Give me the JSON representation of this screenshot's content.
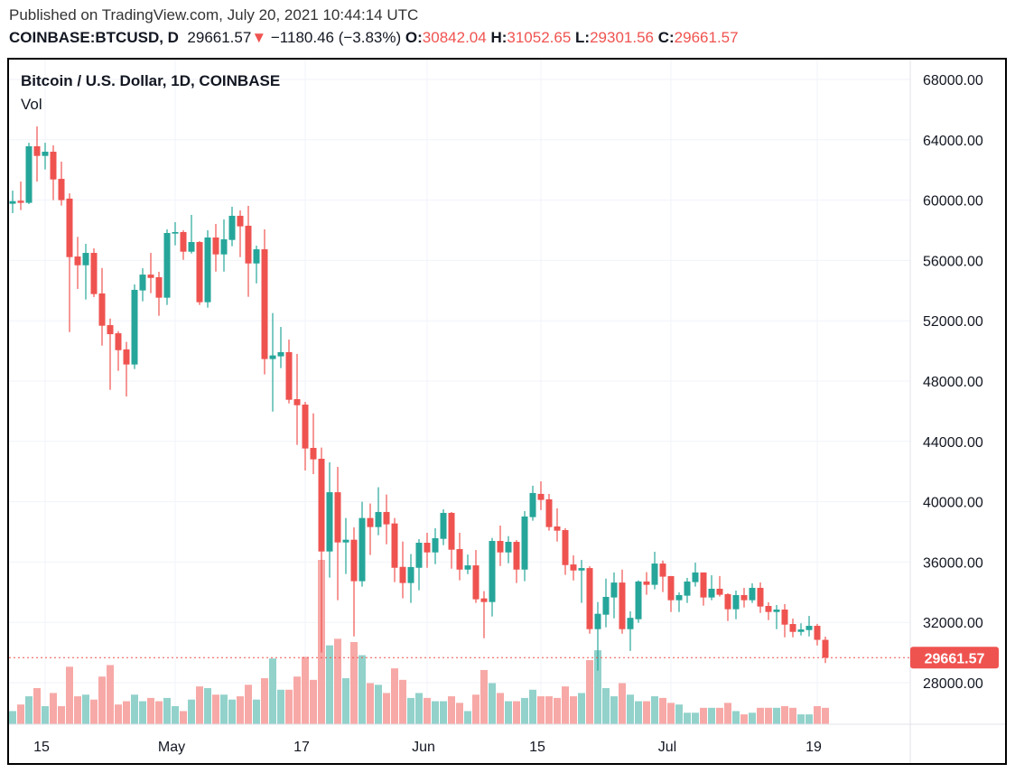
{
  "header": {
    "published": "Published on TradingView.com, July 20, 2021 10:44:14 UTC",
    "symbol": "COINBASE:BTCUSD, D",
    "last": "29661.57",
    "change": "−1180.46 (−3.83%)",
    "o_label": "O:",
    "o_value": "30842.04",
    "h_label": "H:",
    "h_value": "31052.65",
    "l_label": "L:",
    "l_value": "29301.56",
    "c_label": "C:",
    "c_value": "29661.57",
    "direction_icon": "triangle-down-icon"
  },
  "legend": {
    "title": "Bitcoin / U.S. Dollar, 1D, COINBASE",
    "volume": "Vol"
  },
  "colors": {
    "up": "#26a69a",
    "down": "#ef5350",
    "up_volume": "#92d2cb",
    "down_volume": "#f7a9a7",
    "grid": "#f0f3fa"
  },
  "chart_data": {
    "type": "candlestick",
    "title": "Bitcoin / U.S. Dollar, 1D, COINBASE",
    "ylim": [
      26000,
      69000
    ],
    "grid": true,
    "last_price_label": "29661.57",
    "y_ticks": [
      "28000.00",
      "32000.00",
      "36000.00",
      "40000.00",
      "44000.00",
      "48000.00",
      "52000.00",
      "56000.00",
      "60000.00",
      "64000.00",
      "68000.00"
    ],
    "x_ticks": [
      {
        "label": "15",
        "date": "2021-04-15"
      },
      {
        "label": "May",
        "date": "2021-05-01"
      },
      {
        "label": "17",
        "date": "2021-05-17"
      },
      {
        "label": "Jun",
        "date": "2021-06-01"
      },
      {
        "label": "15",
        "date": "2021-06-15"
      },
      {
        "label": "Jul",
        "date": "2021-07-01"
      },
      {
        "label": "19",
        "date": "2021-07-19"
      }
    ],
    "columns": [
      "date",
      "open",
      "high",
      "low",
      "close"
    ],
    "ohlc": [
      [
        "2021-04-11",
        59760,
        60630,
        59140,
        59930
      ],
      [
        "2021-04-12",
        59960,
        61230,
        59340,
        59820
      ],
      [
        "2021-04-13",
        59820,
        63800,
        59740,
        63570
      ],
      [
        "2021-04-14",
        63570,
        64890,
        61230,
        62930
      ],
      [
        "2021-04-15",
        62930,
        63800,
        62030,
        63210
      ],
      [
        "2021-04-16",
        63210,
        63630,
        60000,
        61370
      ],
      [
        "2021-04-17",
        61410,
        62550,
        59640,
        60000
      ],
      [
        "2021-04-18",
        60100,
        60450,
        51250,
        56220
      ],
      [
        "2021-04-19",
        56260,
        57560,
        54110,
        55680
      ],
      [
        "2021-04-20",
        55680,
        57100,
        53410,
        56500
      ],
      [
        "2021-04-21",
        56500,
        56800,
        53570,
        53770
      ],
      [
        "2021-04-22",
        53810,
        55500,
        50350,
        51670
      ],
      [
        "2021-04-23",
        51710,
        52150,
        47420,
        51110
      ],
      [
        "2021-04-24",
        51170,
        51310,
        48680,
        50050
      ],
      [
        "2021-04-25",
        50100,
        50600,
        46980,
        49100
      ],
      [
        "2021-04-26",
        49100,
        54410,
        48800,
        54050
      ],
      [
        "2021-04-27",
        54010,
        55480,
        53290,
        55060
      ],
      [
        "2021-04-28",
        55060,
        56500,
        53830,
        54840
      ],
      [
        "2021-04-29",
        54890,
        55250,
        52330,
        53530
      ],
      [
        "2021-04-30",
        53530,
        58060,
        53050,
        57820
      ],
      [
        "2021-05-01",
        57780,
        58540,
        57000,
        57880
      ],
      [
        "2021-05-02",
        57880,
        58000,
        56040,
        56580
      ],
      [
        "2021-05-03",
        56580,
        59020,
        56460,
        57220
      ],
      [
        "2021-05-04",
        57220,
        57280,
        53050,
        53230
      ],
      [
        "2021-05-05",
        53230,
        58000,
        52870,
        57520
      ],
      [
        "2021-05-06",
        57520,
        58420,
        55260,
        56400
      ],
      [
        "2021-05-07",
        56400,
        58720,
        55260,
        57400
      ],
      [
        "2021-05-08",
        57360,
        59560,
        56940,
        58960
      ],
      [
        "2021-05-09",
        58960,
        59320,
        56220,
        58260
      ],
      [
        "2021-05-10",
        58300,
        59620,
        53590,
        55800
      ],
      [
        "2021-05-11",
        55800,
        56980,
        54480,
        56740
      ],
      [
        "2021-05-12",
        56740,
        58060,
        48440,
        49460
      ],
      [
        "2021-05-13",
        49460,
        52510,
        45980,
        49700
      ],
      [
        "2021-05-14",
        49640,
        51590,
        48860,
        49920
      ],
      [
        "2021-05-15",
        49920,
        50750,
        46520,
        46760
      ],
      [
        "2021-05-16",
        46800,
        49800,
        43770,
        46400
      ],
      [
        "2021-05-17",
        46440,
        46620,
        42070,
        43530
      ],
      [
        "2021-05-18",
        43570,
        45860,
        41830,
        42810
      ],
      [
        "2021-05-19",
        42850,
        43590,
        30000,
        36700
      ],
      [
        "2021-05-20",
        36700,
        42610,
        34970,
        40630
      ],
      [
        "2021-05-21",
        40630,
        42310,
        33470,
        37300
      ],
      [
        "2021-05-22",
        37300,
        38920,
        35210,
        37480
      ],
      [
        "2021-05-23",
        37480,
        38300,
        31070,
        34730
      ],
      [
        "2021-05-24",
        34730,
        40000,
        34370,
        38920
      ],
      [
        "2021-05-25",
        38920,
        39880,
        36470,
        38320
      ],
      [
        "2021-05-26",
        38320,
        40960,
        37780,
        39320
      ],
      [
        "2021-05-27",
        39320,
        40480,
        37180,
        38500
      ],
      [
        "2021-05-28",
        38560,
        38920,
        34670,
        35620
      ],
      [
        "2021-05-29",
        35680,
        37360,
        33600,
        34610
      ],
      [
        "2021-05-30",
        34610,
        36530,
        33290,
        35670
      ],
      [
        "2021-05-31",
        35620,
        37520,
        34130,
        37280
      ],
      [
        "2021-06-01",
        37280,
        37940,
        35620,
        36640
      ],
      [
        "2021-06-02",
        36640,
        38240,
        35860,
        37580
      ],
      [
        "2021-06-03",
        37540,
        39500,
        37120,
        39260
      ],
      [
        "2021-06-04",
        39260,
        39320,
        35560,
        36820
      ],
      [
        "2021-06-05",
        36860,
        37940,
        34790,
        35500
      ],
      [
        "2021-06-06",
        35500,
        36500,
        35200,
        35780
      ],
      [
        "2021-06-07",
        35780,
        36800,
        33290,
        33530
      ],
      [
        "2021-06-08",
        33590,
        34070,
        30950,
        33350
      ],
      [
        "2021-06-09",
        33350,
        37600,
        32390,
        37400
      ],
      [
        "2021-06-10",
        37400,
        38420,
        35740,
        36640
      ],
      [
        "2021-06-11",
        36640,
        37720,
        35920,
        37340
      ],
      [
        "2021-06-12",
        37340,
        37460,
        34610,
        35500
      ],
      [
        "2021-06-13",
        35500,
        39380,
        34730,
        39020
      ],
      [
        "2021-06-14",
        38980,
        41060,
        38740,
        40580
      ],
      [
        "2021-06-15",
        40520,
        41350,
        39450,
        40120
      ],
      [
        "2021-06-16",
        40160,
        40520,
        38080,
        38320
      ],
      [
        "2021-06-17",
        38360,
        39560,
        37360,
        38080
      ],
      [
        "2021-06-18",
        38120,
        38240,
        35150,
        35800
      ],
      [
        "2021-06-19",
        35840,
        36440,
        34780,
        35440
      ],
      [
        "2021-06-20",
        35440,
        36140,
        33290,
        35600
      ],
      [
        "2021-06-21",
        35600,
        35720,
        31250,
        31550
      ],
      [
        "2021-06-22",
        31550,
        33350,
        28800,
        32570
      ],
      [
        "2021-06-23",
        32510,
        34900,
        31670,
        33690
      ],
      [
        "2021-06-24",
        33650,
        35310,
        32270,
        34640
      ],
      [
        "2021-06-25",
        34640,
        35500,
        31250,
        31550
      ],
      [
        "2021-06-26",
        31550,
        32730,
        30110,
        32300
      ],
      [
        "2021-06-27",
        32210,
        34790,
        31970,
        34710
      ],
      [
        "2021-06-28",
        34710,
        35330,
        33830,
        34490
      ],
      [
        "2021-06-29",
        34490,
        36680,
        34190,
        35900
      ],
      [
        "2021-06-30",
        35900,
        36100,
        34010,
        35030
      ],
      [
        "2021-07-01",
        35070,
        35070,
        32690,
        33470
      ],
      [
        "2021-07-02",
        33470,
        33990,
        32690,
        33810
      ],
      [
        "2021-07-03",
        33770,
        34950,
        33290,
        34710
      ],
      [
        "2021-07-04",
        34670,
        35960,
        34370,
        35310
      ],
      [
        "2021-07-05",
        35310,
        35310,
        33110,
        33650
      ],
      [
        "2021-07-06",
        33650,
        35130,
        33470,
        34230
      ],
      [
        "2021-07-07",
        34230,
        35070,
        33710,
        33830
      ],
      [
        "2021-07-08",
        33870,
        33930,
        32090,
        32870
      ],
      [
        "2021-07-09",
        32870,
        34110,
        32210,
        33810
      ],
      [
        "2021-07-10",
        33810,
        34290,
        32990,
        33470
      ],
      [
        "2021-07-11",
        33470,
        34590,
        33290,
        34290
      ],
      [
        "2021-07-12",
        34290,
        34650,
        32630,
        33050
      ],
      [
        "2021-07-13",
        33090,
        33330,
        32150,
        32690
      ],
      [
        "2021-07-14",
        32690,
        33150,
        31550,
        32850
      ],
      [
        "2021-07-15",
        32850,
        33210,
        31010,
        31850
      ],
      [
        "2021-07-16",
        31890,
        32250,
        31010,
        31370
      ],
      [
        "2021-07-17",
        31370,
        31940,
        31130,
        31530
      ],
      [
        "2021-07-18",
        31490,
        32430,
        31070,
        31770
      ],
      [
        "2021-07-19",
        31770,
        31900,
        30470,
        30842.04
      ],
      [
        "2021-07-20",
        30842.04,
        31052.65,
        29301.56,
        29661.57
      ]
    ],
    "volume_relative": [
      8,
      12,
      17,
      22,
      11,
      19,
      11,
      35,
      17,
      18,
      15,
      29,
      36,
      12,
      14,
      18,
      14,
      16,
      14,
      16,
      11,
      8,
      15,
      23,
      22,
      18,
      18,
      15,
      17,
      24,
      15,
      28,
      40,
      21,
      21,
      29,
      41,
      27,
      100,
      48,
      52,
      28,
      50,
      42,
      25,
      24,
      19,
      34,
      27,
      16,
      19,
      16,
      14,
      14,
      17,
      13,
      8,
      18,
      33,
      25,
      19,
      14,
      14,
      16,
      21,
      17,
      17,
      16,
      23,
      17,
      19,
      39,
      45,
      22,
      17,
      25,
      18,
      14,
      14,
      17,
      16,
      13,
      12,
      7,
      7,
      10,
      10,
      10,
      13,
      8,
      6,
      7,
      10,
      10,
      10,
      11,
      10,
      6,
      6,
      11,
      10
    ]
  }
}
